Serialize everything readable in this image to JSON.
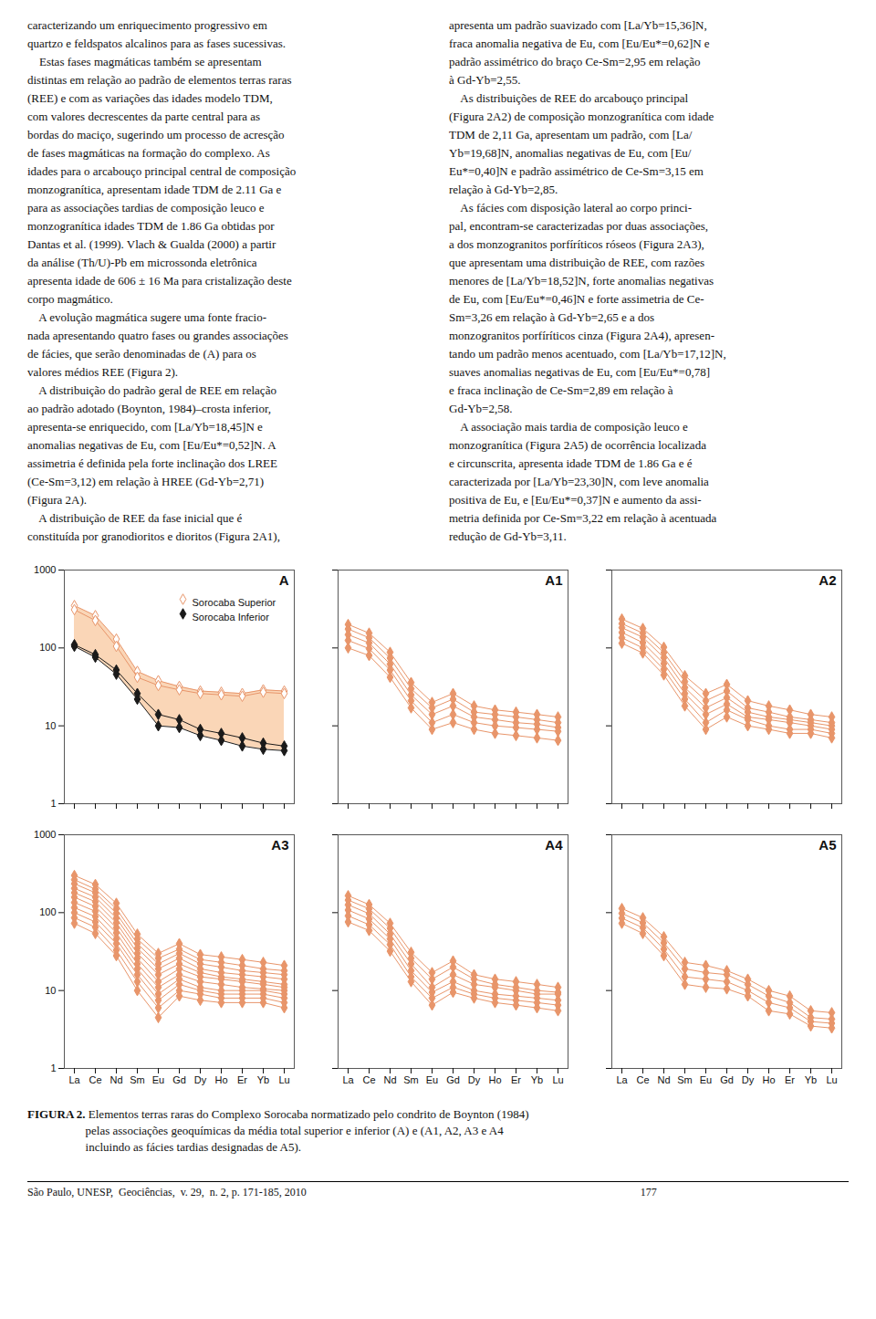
{
  "chart_data": [
    {
      "type": "line",
      "title": "A",
      "categories": [
        "La",
        "Ce",
        "Nd",
        "Sm",
        "Eu",
        "Gd",
        "Dy",
        "Ho",
        "Er",
        "Yb",
        "Lu"
      ],
      "log": "y",
      "ylim": [
        1,
        1000
      ],
      "yticks": [
        1,
        10,
        100,
        1000
      ],
      "tick_labels": "y",
      "legend": "top-right",
      "series": [
        {
          "type": "area",
          "color": "#F4A460",
          "lower": [
            105,
            76,
            46,
            22,
            10,
            9.5,
            7.5,
            6.5,
            5.5,
            5,
            4.8
          ],
          "upper": [
            350,
            260,
            130,
            50,
            38,
            32,
            28,
            27,
            26,
            29,
            28
          ]
        },
        {
          "name": "Sorocaba Superior",
          "color": "#E8956A",
          "marker": "diamond_open",
          "values": [
            350,
            260,
            130,
            50,
            38,
            32,
            28,
            27,
            26,
            29,
            28
          ]
        },
        {
          "name": "Sorocaba Superior",
          "color": "#E8956A",
          "marker": "diamond_open",
          "values": [
            310,
            225,
            105,
            42,
            33,
            29,
            26,
            25,
            24,
            27,
            26
          ]
        },
        {
          "name": "Sorocaba Inferior",
          "color": "#1A1A1A",
          "marker": "diamond",
          "values": [
            110,
            82,
            52,
            26,
            14,
            12,
            9,
            8,
            7,
            6,
            5.5
          ]
        },
        {
          "name": "Sorocaba Inferior",
          "color": "#1A1A1A",
          "marker": "diamond",
          "values": [
            105,
            76,
            46,
            22,
            10,
            9.5,
            7.5,
            6.5,
            5.5,
            5,
            4.8
          ]
        }
      ]
    },
    {
      "type": "line",
      "title": "A1",
      "categories": [
        "La",
        "Ce",
        "Nd",
        "Sm",
        "Eu",
        "Gd",
        "Dy",
        "Ho",
        "Er",
        "Yb",
        "Lu"
      ],
      "log": "y",
      "ylim": [
        1,
        1000
      ],
      "yticks": [
        1,
        10,
        100,
        1000
      ],
      "tick_labels": false,
      "series": [
        {
          "color": "#E8956A",
          "marker": "diamond",
          "values": [
            200,
            155,
            88,
            36,
            20,
            26,
            18,
            16,
            15,
            14,
            13
          ]
        },
        {
          "color": "#E8956A",
          "marker": "diamond",
          "values": [
            175,
            135,
            74,
            30,
            17,
            22,
            15,
            14,
            13,
            12,
            11
          ]
        },
        {
          "color": "#E8956A",
          "marker": "diamond",
          "values": [
            148,
            116,
            62,
            25,
            14,
            18,
            13,
            12,
            11,
            10.5,
            9.5
          ]
        },
        {
          "color": "#E8956A",
          "marker": "diamond",
          "values": [
            125,
            98,
            52,
            21,
            11,
            14,
            11,
            10,
            9.5,
            9,
            8.5
          ]
        },
        {
          "color": "#E8956A",
          "marker": "diamond",
          "values": [
            100,
            80,
            42,
            17,
            9,
            11,
            9,
            8,
            7.5,
            7,
            6.5
          ]
        }
      ]
    },
    {
      "type": "line",
      "title": "A2",
      "categories": [
        "La",
        "Ce",
        "Nd",
        "Sm",
        "Eu",
        "Gd",
        "Dy",
        "Ho",
        "Er",
        "Yb",
        "Lu"
      ],
      "log": "y",
      "ylim": [
        1,
        1000
      ],
      "yticks": [
        1,
        10,
        100,
        1000
      ],
      "tick_labels": false,
      "series": [
        {
          "color": "#E8956A",
          "marker": "diamond",
          "values": [
            235,
            178,
            102,
            44,
            26,
            34,
            21,
            18,
            16,
            14,
            13
          ]
        },
        {
          "color": "#E8956A",
          "marker": "diamond",
          "values": [
            205,
            155,
            87,
            37,
            21,
            28,
            17,
            15,
            13,
            12,
            11
          ]
        },
        {
          "color": "#E8956A",
          "marker": "diamond",
          "values": [
            182,
            137,
            75,
            31,
            17,
            23,
            15,
            13,
            12,
            11,
            10
          ]
        },
        {
          "color": "#E8956A",
          "marker": "diamond",
          "values": [
            158,
            117,
            63,
            26,
            14,
            19,
            13,
            12,
            11,
            10,
            9
          ]
        },
        {
          "color": "#E8956A",
          "marker": "diamond",
          "values": [
            135,
            100,
            53,
            22,
            11,
            16,
            12,
            10,
            9,
            9,
            8
          ]
        },
        {
          "color": "#E8956A",
          "marker": "diamond",
          "values": [
            115,
            86,
            45,
            18,
            9,
            13,
            10,
            9,
            8,
            8,
            7
          ]
        }
      ]
    },
    {
      "type": "line",
      "title": "A3",
      "categories": [
        "La",
        "Ce",
        "Nd",
        "Sm",
        "Eu",
        "Gd",
        "Dy",
        "Ho",
        "Er",
        "Yb",
        "Lu"
      ],
      "log": "y",
      "ylim": [
        1,
        1000
      ],
      "yticks": [
        1,
        10,
        100,
        1000
      ],
      "series": [
        {
          "color": "#E8956A",
          "marker": "diamond",
          "values": [
            300,
            230,
            132,
            53,
            30,
            40,
            29,
            27,
            25,
            23,
            21
          ]
        },
        {
          "color": "#E8956A",
          "marker": "diamond",
          "values": [
            265,
            200,
            112,
            46,
            26,
            34,
            25,
            23,
            21,
            19,
            18
          ]
        },
        {
          "color": "#E8956A",
          "marker": "diamond",
          "values": [
            235,
            180,
            98,
            40,
            22,
            30,
            22,
            20,
            18,
            17,
            16
          ]
        },
        {
          "color": "#E8956A",
          "marker": "diamond",
          "values": [
            205,
            158,
            85,
            35,
            19,
            26,
            19,
            17,
            16,
            15,
            14
          ]
        },
        {
          "color": "#E8956A",
          "marker": "diamond",
          "values": [
            180,
            138,
            74,
            30,
            16,
            22,
            17,
            15,
            14,
            13,
            12
          ]
        },
        {
          "color": "#E8956A",
          "marker": "diamond",
          "values": [
            158,
            120,
            64,
            26,
            13,
            19,
            15,
            14,
            13,
            12,
            11
          ]
        },
        {
          "color": "#E8956A",
          "marker": "diamond",
          "values": [
            135,
            104,
            55,
            22,
            11,
            16,
            13,
            12,
            11,
            10.5,
            10
          ]
        },
        {
          "color": "#E8956A",
          "marker": "diamond",
          "values": [
            116,
            89,
            46,
            19,
            9,
            14,
            11,
            10,
            10,
            10,
            9
          ]
        },
        {
          "color": "#E8956A",
          "marker": "diamond",
          "values": [
            100,
            76,
            40,
            16,
            7.5,
            12,
            10,
            9,
            9,
            9,
            8
          ]
        },
        {
          "color": "#E8956A",
          "marker": "diamond",
          "values": [
            86,
            65,
            33,
            13,
            6,
            10,
            9,
            8,
            8,
            8,
            7
          ]
        },
        {
          "color": "#E8956A",
          "marker": "diamond",
          "values": [
            73,
            54,
            28,
            10,
            4.5,
            8.5,
            7.5,
            7,
            7,
            7,
            6
          ]
        }
      ]
    },
    {
      "type": "line",
      "title": "A4",
      "categories": [
        "La",
        "Ce",
        "Nd",
        "Sm",
        "Eu",
        "Gd",
        "Dy",
        "Ho",
        "Er",
        "Yb",
        "Lu"
      ],
      "log": "y",
      "ylim": [
        1,
        1000
      ],
      "yticks": [
        1,
        10,
        100,
        1000
      ],
      "tick_labels": "x",
      "series": [
        {
          "color": "#E8956A",
          "marker": "diamond",
          "values": [
            165,
            127,
            73,
            31,
            17,
            24,
            16,
            14,
            13,
            12,
            11
          ]
        },
        {
          "color": "#E8956A",
          "marker": "diamond",
          "values": [
            145,
            112,
            63,
            26,
            14,
            20,
            14,
            12,
            11,
            10,
            9.5
          ]
        },
        {
          "color": "#E8956A",
          "marker": "diamond",
          "values": [
            126,
            97,
            53,
            22,
            11,
            16,
            12,
            11,
            10,
            9,
            9
          ]
        },
        {
          "color": "#E8956A",
          "marker": "diamond",
          "values": [
            108,
            83,
            46,
            18,
            9.5,
            13,
            10,
            9,
            8.5,
            8,
            7.5
          ]
        },
        {
          "color": "#E8956A",
          "marker": "diamond",
          "values": [
            91,
            70,
            39,
            15,
            8,
            11,
            9,
            8,
            7.5,
            7,
            6.5
          ]
        },
        {
          "color": "#E8956A",
          "marker": "diamond",
          "values": [
            76,
            59,
            32,
            13,
            6.5,
            9.5,
            8,
            7,
            6.5,
            6,
            5.5
          ]
        }
      ]
    },
    {
      "type": "line",
      "title": "A5",
      "categories": [
        "La",
        "Ce",
        "Nd",
        "Sm",
        "Eu",
        "Gd",
        "Dy",
        "Ho",
        "Er",
        "Yb",
        "Lu"
      ],
      "log": "y",
      "ylim": [
        1,
        1000
      ],
      "yticks": [
        1,
        10,
        100,
        1000
      ],
      "tick_labels": "x",
      "series": [
        {
          "color": "#E8956A",
          "marker": "diamond",
          "values": [
            113,
            86,
            49,
            23,
            21,
            18,
            14,
            10,
            8.5,
            5.5,
            5.2
          ]
        },
        {
          "color": "#E8956A",
          "marker": "diamond",
          "values": [
            98,
            74,
            41,
            19,
            17,
            16,
            12,
            8.5,
            7,
            4.5,
            4.3
          ]
        },
        {
          "color": "#E8956A",
          "marker": "diamond",
          "values": [
            85,
            64,
            34,
            15,
            14,
            13,
            10,
            7,
            6,
            4,
            3.8
          ]
        },
        {
          "color": "#E8956A",
          "marker": "diamond",
          "values": [
            73,
            54,
            28,
            12,
            11,
            10.5,
            8.5,
            5.5,
            5,
            3.5,
            3.3
          ]
        }
      ]
    }
  ],
  "text_left_col": [
    "caracterizando um enriquecimento progressivo em",
    "quartzo e feldspatos alcalinos para as fases sucessivas.",
    "    Estas fases magmáticas também se apresentam",
    "distintas em relação ao padrão de elementos terras raras",
    "(REE) e com as variações das idades modelo TDM,",
    "com valores decrescentes da parte central para as",
    "bordas do maciço, sugerindo um processo de acresção",
    "de fases magmáticas na formação do complexo. As",
    "idades para o arcabouço principal central de composição",
    "monzogranítica, apresentam idade TDM de 2.11 Ga e",
    "para as associações tardias de composição leuco e",
    "monzogranítica idades TDM de 1.86 Ga obtidas por",
    "Dantas et al. (1999). Vlach & Gualda (2000) a partir",
    "da análise (Th/U)-Pb em microssonda eletrônica",
    "apresenta idade de 606 ± 16 Ma para cristalização deste",
    "corpo magmático.",
    "    A evolução magmática sugere uma fonte fracio-",
    "nada apresentando quatro fases ou grandes associações",
    "de fácies, que serão denominadas de (A) para os",
    "valores médios REE (Figura 2).",
    "    A distribuição do padrão geral de REE em relação",
    "ao padrão adotado (Boynton, 1984)–crosta inferior,",
    "apresenta-se enriquecido, com [La/Yb=18,45]N e",
    "anomalias negativas de Eu, com [Eu/Eu*=0,52]N. A",
    "assimetria é definida pela forte inclinação dos LREE",
    "(Ce-Sm=3,12) em relação à HREE (Gd-Yb=2,71)",
    "(Figura 2A).",
    "    A distribuição de REE da fase inicial que é",
    "constituída por granodioritos e dioritos (Figura 2A1),"
  ],
  "text_right_col": [
    "apresenta um padrão suavizado com [La/Yb=15,36]N,",
    "fraca anomalia negativa de Eu, com [Eu/Eu*=0,62]N e",
    "padrão assimétrico do braço Ce-Sm=2,95 em relação",
    "à Gd-Yb=2,55.",
    "    As distribuições de REE do arcabouço principal",
    "(Figura 2A2) de composição monzogranítica com idade",
    "TDM de 2,11 Ga, apresentam um padrão, com [La/",
    "Yb=19,68]N, anomalias negativas de Eu, com [Eu/",
    "Eu*=0,40]N e padrão assimétrico de Ce-Sm=3,15 em",
    "relação à Gd-Yb=2,85.",
    "    As fácies com disposição lateral ao corpo princi-",
    "pal, encontram-se caracterizadas por duas associações,",
    "a dos monzogranitos porfíríticos róseos (Figura 2A3),",
    "que apresentam uma distribuição de REE, com razões",
    "menores de [La/Yb=18,52]N, forte anomalias negativas",
    "de Eu, com [Eu/Eu*=0,46]N e forte assimetria de Ce-",
    "Sm=3,26 em relação à Gd-Yb=2,65 e a dos",
    "monzogranitos porfíríticos cinza (Figura 2A4), apresen-",
    "tando um padrão menos acentuado, com [La/Yb=17,12]N,",
    "suaves anomalias negativas de Eu, com [Eu/Eu*=0,78]",
    "e fraca inclinação de Ce-Sm=2,89 em relação à",
    "Gd-Yb=2,58.",
    "    A associação mais tardia de composição leuco e",
    "monzogranítica (Figura 2A5) de ocorrência localizada",
    "e circunscrita, apresenta idade TDM de 1.86 Ga e é",
    "caracterizada por [La/Yb=23,30]N, com leve anomalia",
    "positiva de Eu, e [Eu/Eu*=0,37]N e aumento da assi-",
    "metria definida por Ce-Sm=3,22 em relação à acentuada",
    "redução de Gd-Yb=3,11."
  ],
  "caption_bold": "FIGURA 2.",
  "caption_text": " Elementos terras raras do Complexo Sorocaba normatizado pelo condrito de Boynton (1984)\npelas associações geoquímicas da média total superior e inferior (A) e (A1, A2, A3 e A4\nincluindo as fácies tardias designadas de A5).",
  "footer_text": "São Paulo, UNESP,  Geociências,  v. 29,  n. 2, p. 171-185, 2010                                                                                                                          177"
}
